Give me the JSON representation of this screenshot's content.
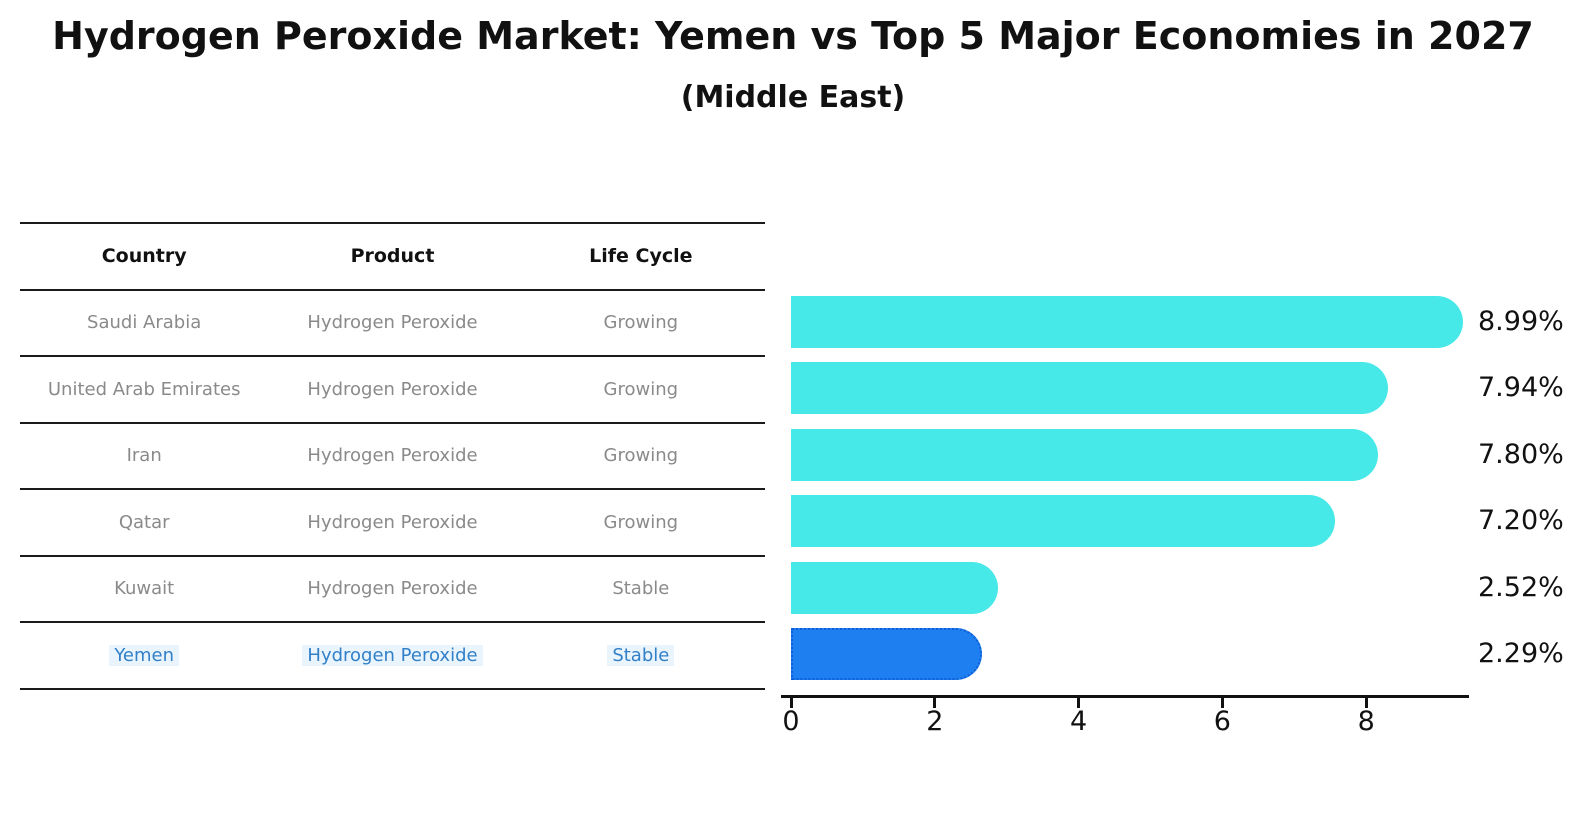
{
  "header": {
    "title": "Hydrogen Peroxide Market: Yemen vs Top 5 Major Economies in 2027",
    "subtitle": "(Middle East)"
  },
  "table": {
    "columns": [
      "Country",
      "Product",
      "Life Cycle"
    ],
    "rows": [
      {
        "country": "Saudi Arabia",
        "product": "Hydrogen Peroxide",
        "life_cycle": "Growing",
        "highlight": false
      },
      {
        "country": "United Arab Emirates",
        "product": "Hydrogen Peroxide",
        "life_cycle": "Growing",
        "highlight": false
      },
      {
        "country": "Iran",
        "product": "Hydrogen Peroxide",
        "life_cycle": "Growing",
        "highlight": false
      },
      {
        "country": "Qatar",
        "product": "Hydrogen Peroxide",
        "life_cycle": "Growing",
        "highlight": false
      },
      {
        "country": "Kuwait",
        "product": "Hydrogen Peroxide",
        "life_cycle": "Stable",
        "highlight": false
      },
      {
        "country": "Yemen",
        "product": "Hydrogen Peroxide",
        "life_cycle": "Stable",
        "highlight": true
      }
    ]
  },
  "chart_data": {
    "type": "bar",
    "orientation": "horizontal",
    "title": "Hydrogen Peroxide Market: Yemen vs Top 5 Major Economies in 2027 (Middle East)",
    "categories": [
      "Saudi Arabia",
      "United Arab Emirates",
      "Iran",
      "Qatar",
      "Kuwait",
      "Yemen"
    ],
    "values": [
      8.99,
      7.94,
      7.8,
      7.2,
      2.52,
      2.29
    ],
    "value_labels": [
      "8.99%",
      "7.94%",
      "7.80%",
      "7.20%",
      "2.52%",
      "2.29%"
    ],
    "x_ticks": [
      0,
      2,
      4,
      6,
      8
    ],
    "xlim": [
      0,
      9.4
    ],
    "grid": false,
    "legend": false,
    "colors": {
      "bar_default": "#47e8e8",
      "bar_highlight": "#1e80f0",
      "bar_highlight_border": "#0e5fd8",
      "highlight_text": "#3180c8",
      "axis": "#111111",
      "table_line": "#1a1a1a",
      "row_text": "#8a8a8a",
      "header_text": "#111111"
    }
  }
}
